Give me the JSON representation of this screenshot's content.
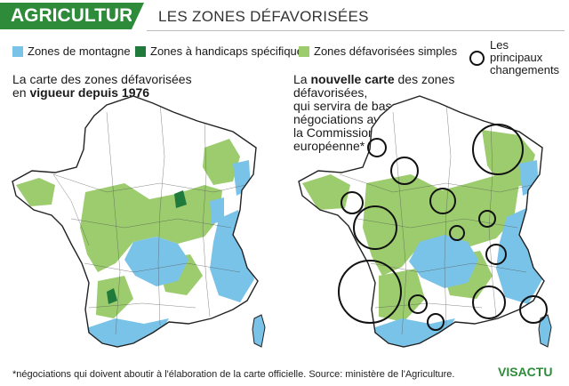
{
  "header": {
    "tag": "AGRICULTURE",
    "title": "LES ZONES DÉFAVORISÉES"
  },
  "legend": {
    "items": [
      {
        "label": "Zones de montagne",
        "color": "#7ac3e8"
      },
      {
        "label": "Zones à handicaps spécifiques",
        "color": "#1f7a3c"
      },
      {
        "label": "Zones défavorisées simples",
        "color": "#9ccc6e"
      }
    ],
    "changes_label_line1": "Les principaux",
    "changes_label_line2": "changements"
  },
  "left_map": {
    "caption_pre": "La carte des zones défavorisées",
    "caption_l2_pre": "en ",
    "caption_bold": "vigueur depuis 1976"
  },
  "right_map": {
    "caption_pre": "La ",
    "caption_bold": "nouvelle carte",
    "caption_post": " des zones défavorisées,",
    "caption_l2": "qui servira de base aux",
    "caption_l3": "négociations avec",
    "caption_l4": "la Commission",
    "caption_l5": "européenne*"
  },
  "footnote": "*négociations qui doivent aboutir à l'élaboration de la carte officielle. Source: ministère de l'Agriculture.",
  "brand": "VISACTU",
  "colors": {
    "brand_green": "#2e8b3a",
    "mountain": "#7ac3e8",
    "specific": "#1f7a3c",
    "simple": "#9ccc6e",
    "outline": "#222222"
  }
}
